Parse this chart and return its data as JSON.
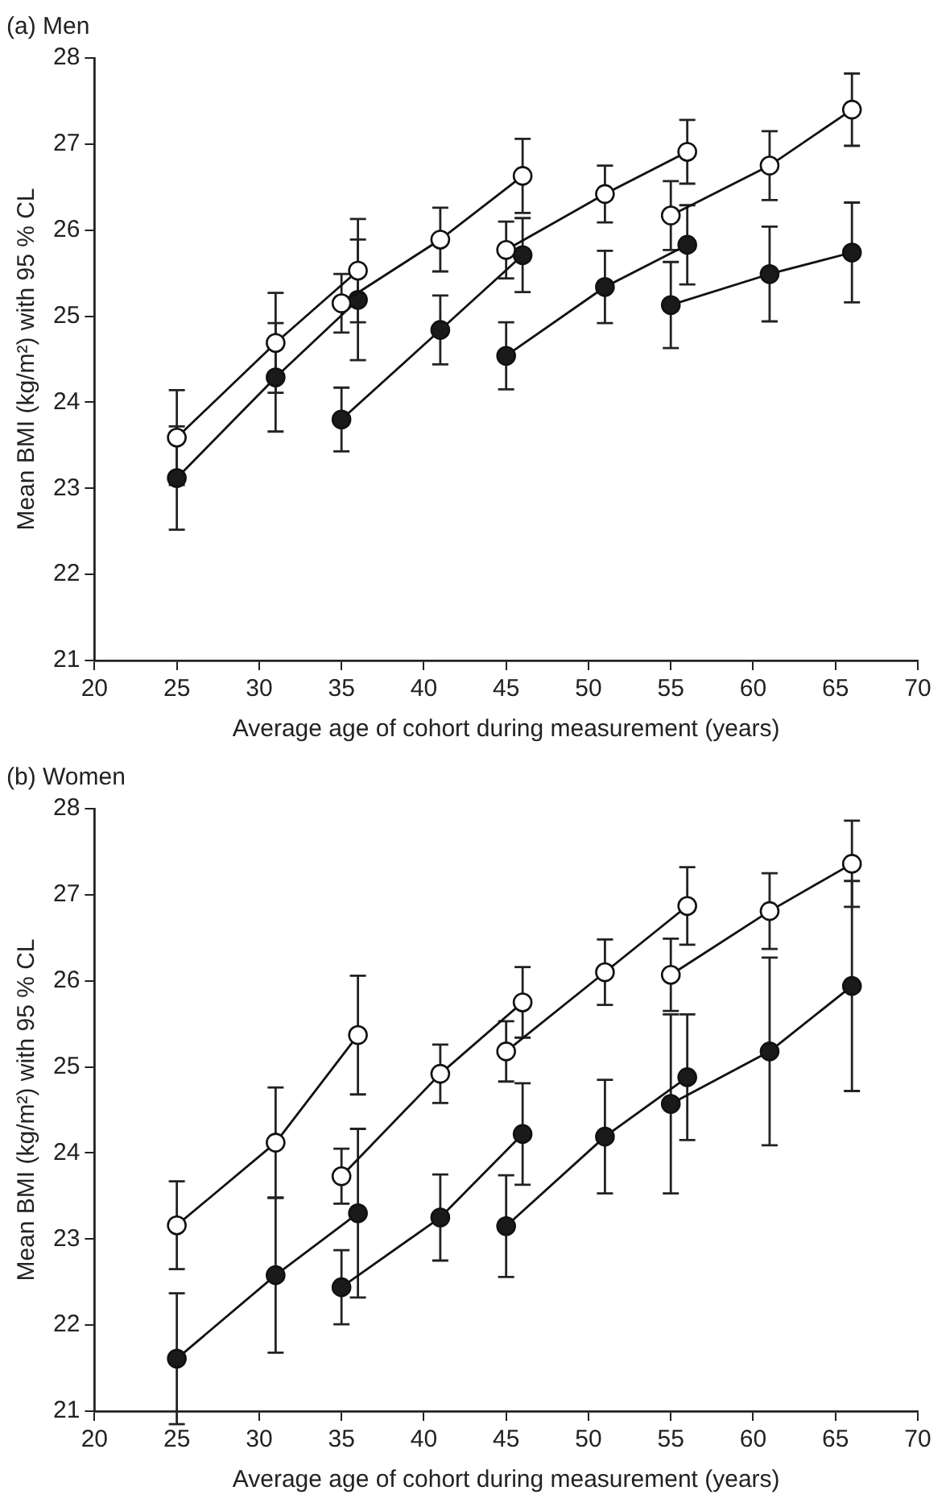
{
  "chart_data": [
    {
      "type": "line",
      "title": "(a) Men",
      "xlabel": "Average age of cohort during measurement (years)",
      "ylabel": "Mean BMI (kg/m²) with 95 % CL",
      "xlim": [
        20,
        70
      ],
      "xticks": [
        20,
        25,
        30,
        35,
        40,
        45,
        50,
        55,
        60,
        65,
        70
      ],
      "ylim": [
        21,
        28
      ],
      "yticks": [
        21,
        22,
        23,
        24,
        25,
        26,
        27,
        28
      ],
      "grid": false,
      "legend": false,
      "marker": "circle",
      "line_style": "solid",
      "series": [
        {
          "color": "#ffffff",
          "x": [
            25,
            31,
            36
          ],
          "values": [
            23.59,
            24.69,
            25.53
          ],
          "errors": [
            0.55,
            0.58,
            0.6
          ]
        },
        {
          "color": "#ffffff",
          "x": [
            35,
            41,
            46
          ],
          "values": [
            25.15,
            25.89,
            26.63
          ],
          "errors": [
            0.34,
            0.37,
            0.43
          ]
        },
        {
          "color": "#ffffff",
          "x": [
            45,
            51,
            56
          ],
          "values": [
            25.77,
            26.42,
            26.91
          ],
          "errors": [
            0.33,
            0.33,
            0.37
          ]
        },
        {
          "color": "#ffffff",
          "x": [
            55,
            61,
            66
          ],
          "values": [
            26.17,
            26.75,
            27.4
          ],
          "errors": [
            0.4,
            0.4,
            0.42
          ]
        },
        {
          "color": "#1a1a1a",
          "x": [
            25,
            31,
            36
          ],
          "values": [
            23.12,
            24.29,
            25.19
          ],
          "errors": [
            0.6,
            0.63,
            0.7
          ]
        },
        {
          "color": "#1a1a1a",
          "x": [
            35,
            41,
            46
          ],
          "values": [
            23.8,
            24.84,
            25.71
          ],
          "errors": [
            0.37,
            0.4,
            0.43
          ]
        },
        {
          "color": "#1a1a1a",
          "x": [
            45,
            51,
            56
          ],
          "values": [
            24.54,
            25.34,
            25.83
          ],
          "errors": [
            0.39,
            0.42,
            0.46
          ]
        },
        {
          "color": "#1a1a1a",
          "x": [
            55,
            61,
            66
          ],
          "values": [
            25.13,
            25.49,
            25.74
          ],
          "errors": [
            0.5,
            0.55,
            0.58
          ]
        }
      ]
    },
    {
      "type": "line",
      "title": "(b) Women",
      "xlabel": "Average age of cohort during measurement (years)",
      "ylabel": "Mean BMI (kg/m²) with 95 % CL",
      "xlim": [
        20,
        70
      ],
      "xticks": [
        20,
        25,
        30,
        35,
        40,
        45,
        50,
        55,
        60,
        65,
        70
      ],
      "ylim": [
        21,
        28
      ],
      "yticks": [
        21,
        22,
        23,
        24,
        25,
        26,
        27,
        28
      ],
      "grid": false,
      "legend": false,
      "marker": "circle",
      "line_style": "solid",
      "series": [
        {
          "color": "#ffffff",
          "x": [
            25,
            31,
            36
          ],
          "values": [
            23.16,
            24.12,
            25.37
          ],
          "errors": [
            0.51,
            0.64,
            0.69
          ]
        },
        {
          "color": "#ffffff",
          "x": [
            35,
            41,
            46
          ],
          "values": [
            23.73,
            24.92,
            25.75
          ],
          "errors": [
            0.32,
            0.34,
            0.41
          ]
        },
        {
          "color": "#ffffff",
          "x": [
            45,
            51,
            56
          ],
          "values": [
            25.18,
            26.1,
            26.87
          ],
          "errors": [
            0.35,
            0.38,
            0.45
          ]
        },
        {
          "color": "#ffffff",
          "x": [
            55,
            61,
            66
          ],
          "values": [
            26.07,
            26.81,
            27.36
          ],
          "errors": [
            0.42,
            0.44,
            0.5
          ]
        },
        {
          "color": "#1a1a1a",
          "x": [
            25,
            31,
            36
          ],
          "values": [
            21.61,
            22.58,
            23.3
          ],
          "errors": [
            0.76,
            0.9,
            0.98
          ]
        },
        {
          "color": "#1a1a1a",
          "x": [
            35,
            41,
            46
          ],
          "values": [
            22.44,
            23.25,
            24.22
          ],
          "errors": [
            0.43,
            0.5,
            0.59
          ]
        },
        {
          "color": "#1a1a1a",
          "x": [
            45,
            51,
            56
          ],
          "values": [
            23.15,
            24.19,
            24.88
          ],
          "errors": [
            0.59,
            0.66,
            0.73
          ]
        },
        {
          "color": "#1a1a1a",
          "x": [
            55,
            61,
            66
          ],
          "values": [
            24.57,
            25.18,
            25.94
          ],
          "errors": [
            1.04,
            1.09,
            1.22
          ]
        }
      ]
    }
  ]
}
